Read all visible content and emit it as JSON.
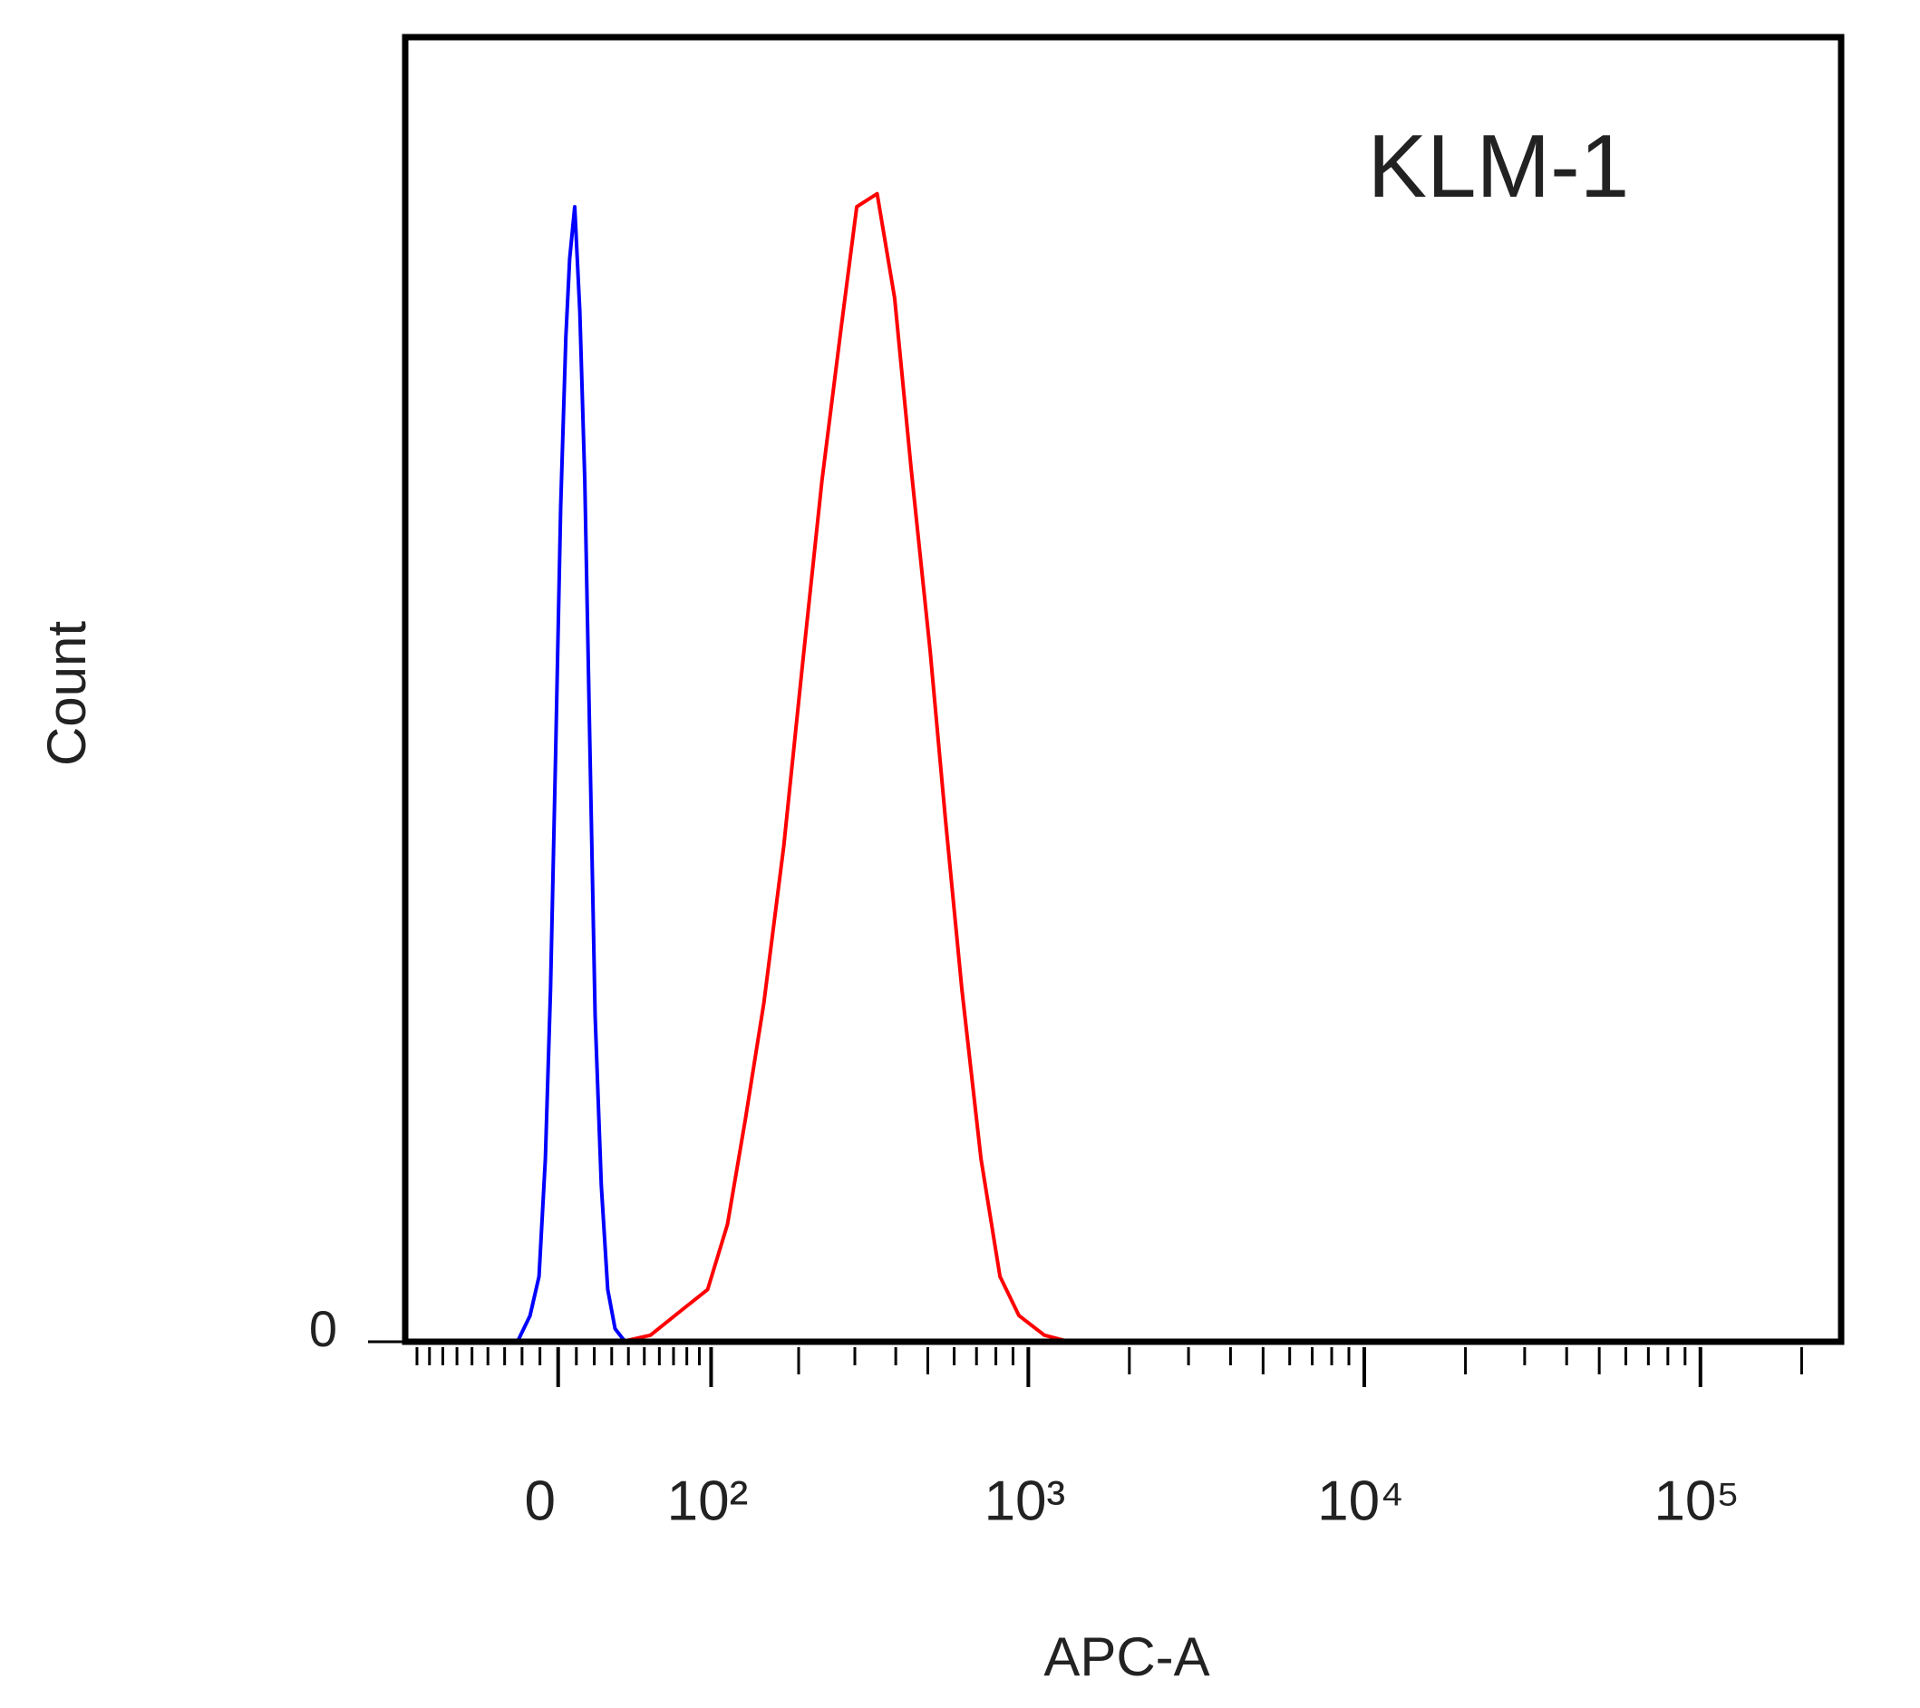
{
  "chart_data": {
    "type": "line",
    "annotation": "KLM-1",
    "x_label": "APC-A",
    "y_label": "Count",
    "x_scale": "biexponential",
    "xlim": [
      -100,
      262144
    ],
    "ylim": [
      0,
      100
    ],
    "xticks": [
      0,
      {
        "value": 100,
        "label": "10²"
      },
      {
        "value": 1000,
        "label": "10³"
      },
      {
        "value": 10000,
        "label": "10⁴"
      },
      {
        "value": 100000,
        "label": "10⁵"
      }
    ],
    "xminor_ticks": [
      -90,
      -80,
      -70,
      -60,
      -50,
      -40,
      -30,
      -20,
      -10,
      10,
      20,
      30,
      40,
      50,
      60,
      70,
      80,
      90,
      200,
      300,
      400,
      500,
      600,
      700,
      800,
      900,
      2000,
      3000,
      4000,
      5000,
      6000,
      7000,
      8000,
      9000,
      20000,
      30000,
      40000,
      50000,
      60000,
      70000,
      80000,
      90000,
      200000
    ],
    "yticks": [
      0
    ],
    "series": [
      {
        "color": "#0000ff",
        "x": [
          -22.6,
          -15.5,
          -10.5,
          -7,
          -4.2,
          -1.4,
          1.4,
          4.2,
          6.3,
          9.1,
          11.9,
          14.7,
          17.6,
          20.5,
          24,
          27.7,
          32,
          38,
          1200
        ],
        "values": [
          0,
          2,
          5,
          14,
          27,
          45,
          64,
          77,
          83,
          87,
          79,
          66,
          45,
          25,
          12,
          4,
          1,
          0,
          0
        ]
      },
      {
        "color": "#ff0000",
        "x": [
          -100,
          36,
          54,
          77,
          97,
          115,
          133,
          154,
          179,
          206,
          237,
          273,
          304,
          351,
          397,
          445,
          508,
          565,
          633,
          722,
          823,
          938,
          1117,
          1328,
          262144
        ],
        "values": [
          0,
          0,
          0.5,
          2.5,
          4,
          9,
          17,
          26,
          38,
          52,
          66,
          78,
          87,
          88,
          80,
          67,
          53,
          40,
          27,
          14,
          5,
          2,
          0.5,
          0,
          0
        ]
      }
    ]
  }
}
